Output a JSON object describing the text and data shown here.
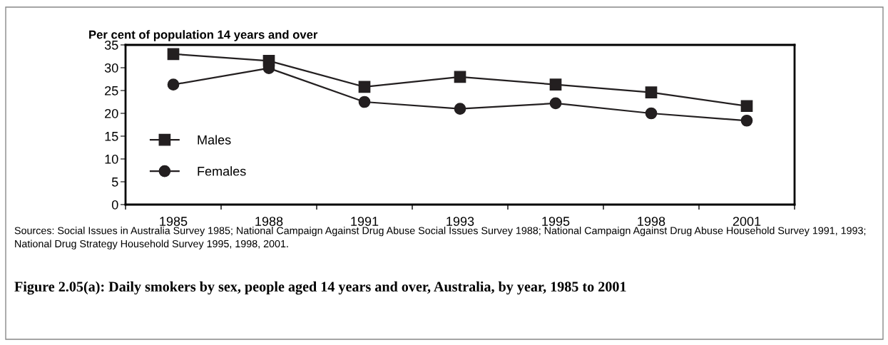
{
  "chart_data": {
    "type": "line",
    "ylabel": "Per cent of population 14 years and over",
    "title": "Figure 2.05(a): Daily smokers by sex, people aged 14 years and over, Australia, by year, 1985 to 2001",
    "categories": [
      "1985",
      "1988",
      "1991",
      "1993",
      "1995",
      "1998",
      "2001"
    ],
    "series": [
      {
        "name": "Males",
        "color": "#231f20",
        "marker": "square",
        "values": [
          33.0,
          31.5,
          25.8,
          28.0,
          26.3,
          24.6,
          21.6
        ]
      },
      {
        "name": "Females",
        "color": "#231f20",
        "marker": "circle",
        "values": [
          26.3,
          29.9,
          22.5,
          21.0,
          22.2,
          20.0,
          18.4
        ]
      }
    ],
    "ylim": [
      0,
      35
    ],
    "yticks": [
      0,
      5,
      10,
      15,
      20,
      25,
      30,
      35
    ],
    "grid": false,
    "legend": "left",
    "line_style": "solid",
    "annotations": [
      "Sources: Social Issues in Australia Survey 1985; National Campaign Against Drug Abuse Social Issues Survey 1988; National Campaign Against Drug Abuse Household Survey 1991, 1993; National Drug Strategy Household Survey 1995, 1998, 2001."
    ]
  }
}
